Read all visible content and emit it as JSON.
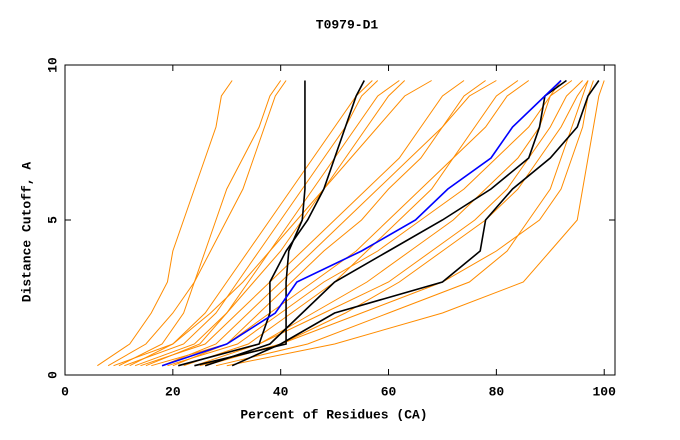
{
  "chart_data": {
    "type": "line",
    "title": "T0979-D1",
    "x_label": "Percent of Residues (CA)",
    "y_label": "Distance Cutoff, A",
    "xlim": [
      0,
      102
    ],
    "ylim": [
      0,
      10
    ],
    "xticks": [
      0,
      20,
      40,
      60,
      80,
      100
    ],
    "yticks": [
      0,
      5,
      10
    ],
    "series": [
      {
        "color": "#ff8c00",
        "x": [
          6,
          12,
          16,
          19,
          20,
          22,
          24,
          26,
          28,
          29,
          31
        ],
        "values": [
          0.3,
          1,
          2,
          3,
          4,
          5,
          6,
          7,
          8,
          9,
          9.5
        ]
      },
      {
        "color": "#ff8c00",
        "x": [
          10,
          18,
          22,
          24,
          27,
          30,
          33,
          35,
          37,
          39,
          41
        ],
        "values": [
          0.3,
          1,
          2,
          3,
          4,
          5,
          6,
          7,
          8,
          9,
          9.5
        ]
      },
      {
        "color": "#ff8c00",
        "x": [
          12,
          20,
          26,
          30,
          34,
          38,
          42,
          46,
          50,
          54,
          57
        ],
        "values": [
          0.3,
          1,
          2,
          3,
          4,
          5,
          6,
          7,
          8,
          9,
          9.5
        ]
      },
      {
        "color": "#ff8c00",
        "x": [
          8,
          15,
          20,
          24,
          26,
          28,
          30,
          33,
          36,
          38,
          40
        ],
        "values": [
          0.3,
          1,
          2,
          3,
          4,
          5,
          6,
          7,
          8,
          9,
          9.5
        ]
      },
      {
        "color": "#ff8c00",
        "x": [
          15,
          25,
          30,
          35,
          40,
          44,
          48,
          52,
          56,
          60,
          63
        ],
        "values": [
          0.3,
          1,
          2,
          3,
          4,
          5,
          6,
          7,
          8,
          9,
          9.5
        ]
      },
      {
        "color": "#ff8c00",
        "x": [
          20,
          30,
          36,
          42,
          48,
          55,
          60,
          66,
          70,
          74,
          78
        ],
        "values": [
          0.3,
          1,
          2,
          3,
          4,
          5,
          6,
          7,
          8,
          9,
          9.5
        ]
      },
      {
        "color": "#ff8c00",
        "x": [
          22,
          34,
          42,
          50,
          56,
          62,
          68,
          72,
          78,
          82,
          86
        ],
        "values": [
          0.3,
          1,
          2,
          3,
          4,
          5,
          6,
          7,
          8,
          9,
          9.5
        ]
      },
      {
        "color": "#ff8c00",
        "x": [
          25,
          40,
          55,
          70,
          80,
          88,
          92,
          94,
          96,
          97,
          98
        ],
        "values": [
          0.3,
          1,
          2,
          3,
          4,
          5,
          6,
          7,
          8,
          9,
          9.5
        ]
      },
      {
        "color": "#ff8c00",
        "x": [
          30,
          50,
          70,
          85,
          90,
          95,
          96,
          97,
          98,
          99,
          100
        ],
        "values": [
          0.3,
          1,
          2,
          3,
          4,
          5,
          6,
          7,
          8,
          9,
          9.5
        ]
      },
      {
        "color": "#ff8c00",
        "x": [
          18,
          28,
          34,
          40,
          46,
          52,
          58,
          64,
          70,
          75,
          80
        ],
        "values": [
          0.3,
          1,
          2,
          3,
          4,
          5,
          6,
          7,
          8,
          9,
          9.5
        ]
      },
      {
        "color": "#ff8c00",
        "x": [
          14,
          26,
          32,
          38,
          44,
          50,
          56,
          62,
          66,
          70,
          74
        ],
        "values": [
          0.3,
          1,
          2,
          3,
          4,
          5,
          6,
          7,
          8,
          9,
          9.5
        ]
      },
      {
        "color": "#ff8c00",
        "x": [
          24,
          36,
          46,
          56,
          64,
          72,
          78,
          84,
          88,
          90,
          92
        ],
        "values": [
          0.3,
          1,
          2,
          3,
          4,
          5,
          6,
          7,
          8,
          9,
          9.5
        ]
      },
      {
        "color": "#ff8c00",
        "x": [
          28,
          45,
          60,
          75,
          82,
          86,
          90,
          92,
          94,
          96,
          97
        ],
        "values": [
          0.3,
          1,
          2,
          3,
          4,
          5,
          6,
          7,
          8,
          9,
          9.5
        ]
      },
      {
        "color": "#ff8c00",
        "x": [
          16,
          30,
          38,
          46,
          54,
          60,
          66,
          72,
          76,
          80,
          84
        ],
        "values": [
          0.3,
          1,
          2,
          3,
          4,
          5,
          6,
          7,
          8,
          9,
          9.5
        ]
      },
      {
        "color": "#ff8c00",
        "x": [
          11,
          22,
          28,
          32,
          36,
          40,
          44,
          48,
          52,
          55,
          58
        ],
        "values": [
          0.3,
          1,
          2,
          3,
          4,
          5,
          6,
          7,
          8,
          9,
          9.5
        ]
      },
      {
        "color": "#ff8c00",
        "x": [
          19,
          32,
          40,
          48,
          58,
          66,
          74,
          80,
          86,
          90,
          94
        ],
        "values": [
          0.3,
          1,
          2,
          3,
          4,
          5,
          6,
          7,
          8,
          9,
          9.5
        ]
      },
      {
        "color": "#ff8c00",
        "x": [
          26,
          40,
          52,
          62,
          70,
          78,
          84,
          88,
          92,
          95,
          97
        ],
        "values": [
          0.3,
          1,
          2,
          3,
          4,
          5,
          6,
          7,
          8,
          9,
          9.5
        ]
      },
      {
        "color": "#ff8c00",
        "x": [
          13,
          24,
          30,
          34,
          38,
          42,
          46,
          50,
          54,
          58,
          62
        ],
        "values": [
          0.3,
          1,
          2,
          3,
          4,
          5,
          6,
          7,
          8,
          9,
          9.5
        ]
      },
      {
        "color": "#ff8c00",
        "x": [
          21,
          36,
          48,
          60,
          68,
          76,
          82,
          86,
          90,
          93,
          96
        ],
        "values": [
          0.3,
          1,
          2,
          3,
          4,
          5,
          6,
          7,
          8,
          9,
          9.5
        ]
      },
      {
        "color": "#ff8c00",
        "x": [
          9,
          20,
          27,
          33,
          38,
          43,
          48,
          53,
          58,
          63,
          68
        ],
        "values": [
          0.3,
          1,
          2,
          3,
          4,
          5,
          6,
          7,
          8,
          9,
          9.5
        ]
      },
      {
        "color": "#000000",
        "x": [
          24,
          41,
          41,
          41,
          41.5,
          44,
          44.5,
          44.5,
          44.5,
          44.5,
          44.5
        ],
        "values": [
          0.3,
          1,
          2,
          3,
          4,
          5,
          6,
          7,
          8,
          9,
          9.5
        ]
      },
      {
        "color": "#000000",
        "x": [
          21,
          36,
          38,
          38,
          41,
          45,
          48,
          50,
          52,
          54,
          55.5
        ],
        "values": [
          0.3,
          1,
          2,
          3,
          4,
          5,
          6,
          7,
          8,
          9,
          9.5
        ]
      },
      {
        "color": "#000000",
        "x": [
          26,
          38,
          44,
          50,
          60,
          70,
          79,
          86,
          88,
          89,
          93
        ],
        "values": [
          0.3,
          1,
          2,
          3,
          4,
          5,
          6,
          7,
          8,
          9,
          9.5
        ]
      },
      {
        "color": "#000000",
        "x": [
          31,
          40,
          50,
          70,
          77,
          78,
          83,
          90,
          95,
          97,
          99
        ],
        "values": [
          0.3,
          1,
          2,
          3,
          4,
          5,
          6,
          7,
          8,
          9,
          9.5
        ]
      },
      {
        "color": "#0000ff",
        "x": [
          18,
          30,
          39,
          43,
          55,
          65,
          71,
          79,
          83,
          89,
          92
        ],
        "values": [
          0.3,
          1,
          2,
          3,
          4,
          5,
          6,
          7,
          8,
          9,
          9.5
        ]
      }
    ]
  }
}
